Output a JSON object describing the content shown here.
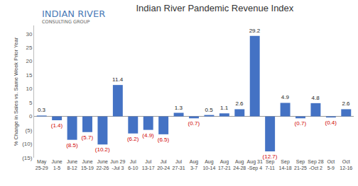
{
  "chart_data": {
    "type": "bar",
    "title": "Indian River Pandemic Revenue Index",
    "annotations": [
      "INDIAN RIVER",
      "CONSULTING GROUP"
    ],
    "y_label": "% Change in Sales vs. Same Week Prior Year",
    "categories": [
      "May\n25-29",
      "June\n1-5",
      "June\n8-12",
      "June\n15-19",
      "June\n22-26",
      "Jun 29\n-Jul 3",
      "Jul\n6-10",
      "Jul\n13-17",
      "Jul\n20-24",
      "Jul\n27-31",
      "Aug\n3-7",
      "Aug\n10-14",
      "Aug\n17-21",
      "Aug\n24-28",
      "Aug 31\n-Sep 4",
      "Sep\n7-11",
      "Sep\n14-18",
      "Sep\n21-25",
      "Sep 28\n-Oct 2",
      "Oct\n5-9",
      "Oct\n12-16"
    ],
    "values": [
      0.3,
      -1.4,
      -8.5,
      -5.7,
      -10.2,
      11.4,
      -6.2,
      -4.9,
      -6.5,
      1.3,
      -0.7,
      0.5,
      1.1,
      2.6,
      29.2,
      -12.7,
      4.9,
      -0.7,
      4.8,
      -0.4,
      2.6
    ],
    "value_labels": [
      "0.3",
      "(1.4)",
      "(8.5)",
      "(5.7)",
      "(10.2)",
      "11.4",
      "(6.2)",
      "(4.9)",
      "(6.5)",
      "1.3",
      "(0.7)",
      "0.5",
      "1.1",
      "2.6",
      "29.2",
      "(12.7)",
      "4.9",
      "(0.7)",
      "4.8",
      "(0.4)",
      "2.6"
    ],
    "color": "#4472c4",
    "data_labels": true,
    "grid": false,
    "ylim": [
      -15,
      33
    ],
    "yticks": [
      {
        "value": -15,
        "label": "(15)"
      },
      {
        "value": -10,
        "label": "(10)"
      },
      {
        "value": -5,
        "label": "(5)"
      },
      0,
      5,
      10,
      15,
      20,
      25,
      30
    ]
  }
}
